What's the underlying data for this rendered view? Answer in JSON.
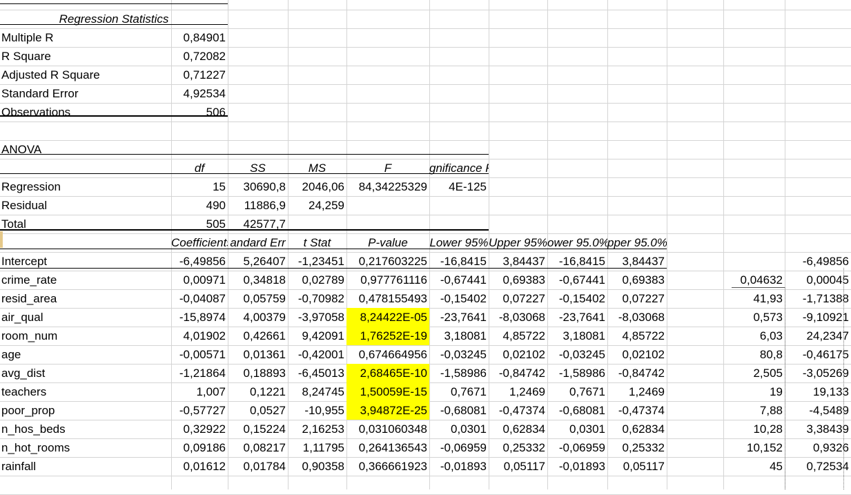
{
  "regression_statistics": {
    "title": "Regression Statistics",
    "rows": [
      {
        "label": "Multiple R",
        "value": "0,84901"
      },
      {
        "label": "R Square",
        "value": "0,72082"
      },
      {
        "label": "Adjusted R Square",
        "value": "0,71227"
      },
      {
        "label": "Standard Error",
        "value": "4,92534"
      },
      {
        "label": "Observations",
        "value": "506"
      }
    ]
  },
  "anova": {
    "title": "ANOVA",
    "headers": [
      "df",
      "SS",
      "MS",
      "F",
      "gnificance F"
    ],
    "rows": [
      {
        "label": "Regression",
        "df": "15",
        "ss": "30690,8",
        "ms": "2046,06",
        "f": "84,34225329",
        "sig": "4E-125"
      },
      {
        "label": "Residual",
        "df": "490",
        "ss": "11886,9",
        "ms": "24,259",
        "f": "",
        "sig": ""
      },
      {
        "label": "Total",
        "df": "505",
        "ss": "42577,7",
        "ms": "",
        "f": "",
        "sig": ""
      }
    ]
  },
  "coefficients": {
    "headers": [
      "Coefficients",
      "andard Err",
      "t Stat",
      "P-value",
      "Lower 95%",
      "Upper 95%",
      "ower 95.0%",
      "pper 95.0%"
    ],
    "rows": [
      {
        "label": "Intercept",
        "coef": "-6,49856",
        "se": "5,26407",
        "t": "-1,23451",
        "p": "0,217603225",
        "lo": "-16,8415",
        "up": "3,84437",
        "lo2": "-16,8415",
        "up2": "3,84437",
        "highlight": false,
        "ext1": "",
        "ext2": "-6,49856"
      },
      {
        "label": "crime_rate",
        "coef": "0,00971",
        "se": "0,34818",
        "t": "0,02789",
        "p": "0,977761116",
        "lo": "-0,67441",
        "up": "0,69383",
        "lo2": "-0,67441",
        "up2": "0,69383",
        "highlight": false,
        "ext1": "0,04632",
        "ext2": "0,00045"
      },
      {
        "label": "resid_area",
        "coef": "-0,04087",
        "se": "0,05759",
        "t": "-0,70982",
        "p": "0,478155493",
        "lo": "-0,15402",
        "up": "0,07227",
        "lo2": "-0,15402",
        "up2": "0,07227",
        "highlight": false,
        "ext1": "41,93",
        "ext2": "-1,71388"
      },
      {
        "label": "air_qual",
        "coef": "-15,8974",
        "se": "4,00379",
        "t": "-3,97058",
        "p": "8,24422E-05",
        "lo": "-23,7641",
        "up": "-8,03068",
        "lo2": "-23,7641",
        "up2": "-8,03068",
        "highlight": true,
        "ext1": "0,573",
        "ext2": "-9,10921"
      },
      {
        "label": "room_num",
        "coef": "4,01902",
        "se": "0,42661",
        "t": "9,42091",
        "p": "1,76252E-19",
        "lo": "3,18081",
        "up": "4,85722",
        "lo2": "3,18081",
        "up2": "4,85722",
        "highlight": true,
        "ext1": "6,03",
        "ext2": "24,2347"
      },
      {
        "label": "age",
        "coef": "-0,00571",
        "se": "0,01361",
        "t": "-0,42001",
        "p": "0,674664956",
        "lo": "-0,03245",
        "up": "0,02102",
        "lo2": "-0,03245",
        "up2": "0,02102",
        "highlight": false,
        "ext1": "80,8",
        "ext2": "-0,46175"
      },
      {
        "label": "avg_dist",
        "coef": "-1,21864",
        "se": "0,18893",
        "t": "-6,45013",
        "p": "2,68465E-10",
        "lo": "-1,58986",
        "up": "-0,84742",
        "lo2": "-1,58986",
        "up2": "-0,84742",
        "highlight": true,
        "ext1": "2,505",
        "ext2": "-3,05269"
      },
      {
        "label": "teachers",
        "coef": "1,007",
        "se": "0,1221",
        "t": "8,24745",
        "p": "1,50059E-15",
        "lo": "0,7671",
        "up": "1,2469",
        "lo2": "0,7671",
        "up2": "1,2469",
        "highlight": true,
        "ext1": "19",
        "ext2": "19,133"
      },
      {
        "label": "poor_prop",
        "coef": "-0,57727",
        "se": "0,0527",
        "t": "-10,955",
        "p": "3,94872E-25",
        "lo": "-0,68081",
        "up": "-0,47374",
        "lo2": "-0,68081",
        "up2": "-0,47374",
        "highlight": true,
        "ext1": "7,88",
        "ext2": "-4,5489"
      },
      {
        "label": "n_hos_beds",
        "coef": "0,32922",
        "se": "0,15224",
        "t": "2,16253",
        "p": "0,031060348",
        "lo": "0,0301",
        "up": "0,62834",
        "lo2": "0,0301",
        "up2": "0,62834",
        "highlight": false,
        "ext1": "10,28",
        "ext2": "3,38439"
      },
      {
        "label": "n_hot_rooms",
        "coef": "0,09186",
        "se": "0,08217",
        "t": "1,11795",
        "p": "0,264136543",
        "lo": "-0,06959",
        "up": "0,25332",
        "lo2": "-0,06959",
        "up2": "0,25332",
        "highlight": false,
        "ext1": "10,152",
        "ext2": "0,9326"
      },
      {
        "label": "rainfall",
        "coef": "0,01612",
        "se": "0,01784",
        "t": "0,90358",
        "p": "0,366661923",
        "lo": "-0,01893",
        "up": "0,05117",
        "lo2": "-0,01893",
        "up2": "0,05117",
        "highlight": false,
        "ext1": "45",
        "ext2": "0,72534"
      }
    ]
  },
  "colors": {
    "highlight": "#ffff00",
    "gridline": "#d4d4d4"
  }
}
